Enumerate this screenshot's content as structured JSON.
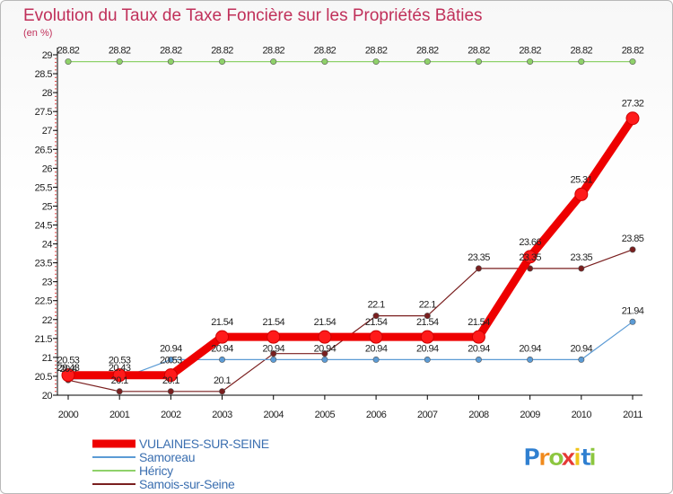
{
  "chart_data": {
    "type": "line",
    "title": "Evolution du Taux de Taxe Foncière sur les Propriétés Bâties",
    "subtitle": "(en %)",
    "x": [
      "2000",
      "2001",
      "2002",
      "2003",
      "2004",
      "2005",
      "2006",
      "2007",
      "2008",
      "2009",
      "2010",
      "2011"
    ],
    "ylim": [
      20,
      29
    ],
    "yticks": [
      "20",
      "20.5",
      "21",
      "21.5",
      "22",
      "22.5",
      "23",
      "23.5",
      "24",
      "24.5",
      "25",
      "25.5",
      "26",
      "26.5",
      "27",
      "27.5",
      "28",
      "28.5",
      "29"
    ],
    "grid": false,
    "legend_position": "bottom-left",
    "series": [
      {
        "name": "Samois-sur-Seine",
        "color": "#7a1f1f",
        "values": [
          20.4,
          20.1,
          20.1,
          20.1,
          21.1,
          21.1,
          22.1,
          22.1,
          23.35,
          23.35,
          23.35,
          23.85
        ],
        "labels": [
          "20.4",
          "20.1",
          "20.1",
          "20.1",
          "",
          "",
          "22.1",
          "22.1",
          "23.35",
          "23.35",
          "23.35",
          "23.85"
        ]
      },
      {
        "name": "Samoreau",
        "color": "#5b9bd5",
        "values": [
          20.43,
          20.43,
          20.94,
          20.94,
          20.94,
          20.94,
          20.94,
          20.94,
          20.94,
          20.94,
          20.94,
          21.94
        ],
        "labels": [
          "20.43",
          "20.43",
          "20.94",
          "20.94",
          "20.94",
          "20.94",
          "20.94",
          "20.94",
          "20.94",
          "20.94",
          "20.94",
          "21.94"
        ]
      },
      {
        "name": "Héricy",
        "color": "#8fd16a",
        "values": [
          28.82,
          28.82,
          28.82,
          28.82,
          28.82,
          28.82,
          28.82,
          28.82,
          28.82,
          28.82,
          28.82,
          28.82
        ],
        "labels": [
          "28.82",
          "28.82",
          "28.82",
          "28.82",
          "28.82",
          "28.82",
          "28.82",
          "28.82",
          "28.82",
          "28.82",
          "28.82",
          "28.82"
        ]
      },
      {
        "name": "VULAINES-SUR-SEINE",
        "color": "#ee0000",
        "values": [
          20.53,
          20.53,
          20.53,
          21.54,
          21.54,
          21.54,
          21.54,
          21.54,
          21.54,
          23.66,
          25.31,
          27.32
        ],
        "labels": [
          "20.53",
          "20.53",
          "20.53",
          "21.54",
          "21.54",
          "21.54",
          "21.54",
          "21.54",
          "21.54",
          "23.66",
          "25.31",
          "27.32"
        ]
      }
    ],
    "legend_order": [
      "VULAINES-SUR-SEINE",
      "Samoreau",
      "Héricy",
      "Samois-sur-Seine"
    ]
  },
  "brand": {
    "letters": [
      "P",
      "r",
      "o",
      "x",
      "i",
      "t",
      "i"
    ],
    "colors": [
      "#2f7fd0",
      "#f08a1c",
      "#8cc63f",
      "#e53935",
      "#f0c419",
      "#2f7fd0",
      "#8cc63f"
    ]
  }
}
